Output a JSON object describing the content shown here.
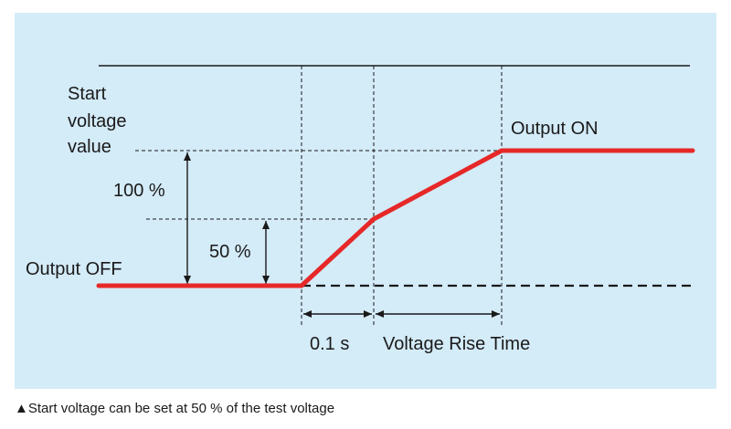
{
  "labels": {
    "start_voltage_line1": "Start",
    "start_voltage_line2": "voltage",
    "start_voltage_line3": "value",
    "output_on": "Output ON",
    "output_off": "Output OFF",
    "percent_100": "100 %",
    "percent_50": "50 %",
    "time_01s": "0.1 s",
    "voltage_rise_time": "Voltage Rise Time"
  },
  "caption": {
    "marker": "▲",
    "text": "Start voltage can be set at 50 % of the test voltage"
  },
  "colors": {
    "panel_background": "#d4ebf8",
    "waveform": "#e62828",
    "line": "#1a1a1a"
  }
}
